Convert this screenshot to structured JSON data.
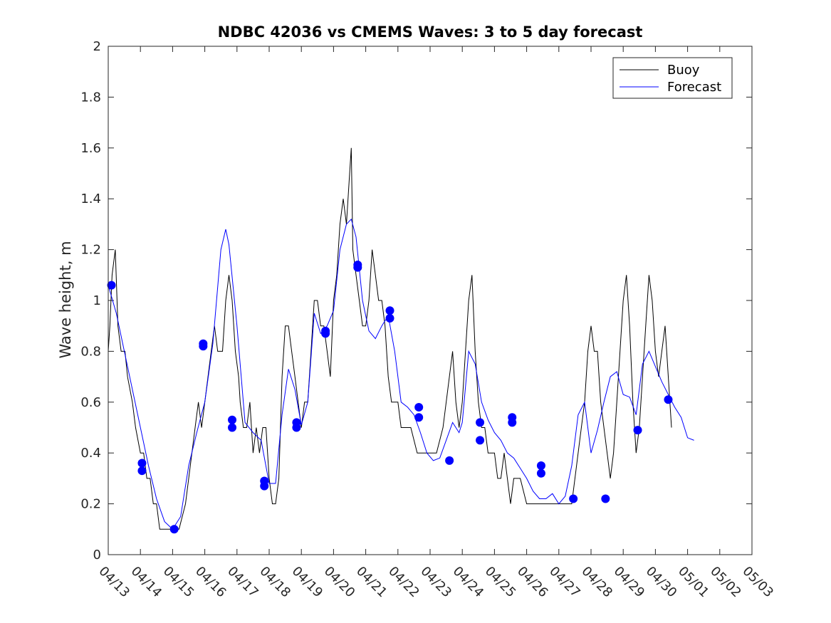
{
  "chart_data": {
    "type": "line",
    "title": "NDBC 42036 vs CMEMS Waves: 3 to 5 day forecast",
    "xlabel": "",
    "ylabel": "Wave height, m",
    "xlim": [
      "04/13",
      "05/03"
    ],
    "ylim": [
      0,
      2
    ],
    "x_tick_labels": [
      "04/13",
      "04/14",
      "04/15",
      "04/16",
      "04/17",
      "04/18",
      "04/19",
      "04/20",
      "04/21",
      "04/22",
      "04/23",
      "04/24",
      "04/25",
      "04/26",
      "04/27",
      "04/28",
      "04/29",
      "04/30",
      "05/01",
      "05/02",
      "05/03"
    ],
    "y_ticks": [
      0,
      0.2,
      0.4,
      0.6,
      0.8,
      1,
      1.2,
      1.4,
      1.6,
      1.8,
      2
    ],
    "y_tick_labels": [
      "0",
      "0.2",
      "0.4",
      "0.6",
      "0.8",
      "1",
      "1.2",
      "1.4",
      "1.6",
      "1.8",
      "2"
    ],
    "grid": false,
    "legend": {
      "placement": "top-right",
      "entries": [
        "Buoy",
        "Forecast"
      ]
    },
    "colors": {
      "buoy": "#000000",
      "forecast": "#0000ff"
    },
    "series": [
      {
        "name": "Buoy",
        "color": "#000000",
        "points": [
          [
            0.0,
            0.8
          ],
          [
            0.05,
            0.9
          ],
          [
            0.12,
            1.1
          ],
          [
            0.22,
            1.2
          ],
          [
            0.3,
            0.9
          ],
          [
            0.4,
            0.8
          ],
          [
            0.52,
            0.8
          ],
          [
            0.6,
            0.7
          ],
          [
            0.75,
            0.6
          ],
          [
            0.85,
            0.5
          ],
          [
            1.0,
            0.4
          ],
          [
            1.1,
            0.4
          ],
          [
            1.2,
            0.3
          ],
          [
            1.3,
            0.3
          ],
          [
            1.4,
            0.2
          ],
          [
            1.5,
            0.2
          ],
          [
            1.6,
            0.1
          ],
          [
            1.8,
            0.1
          ],
          [
            2.0,
            0.1
          ],
          [
            2.2,
            0.1
          ],
          [
            2.4,
            0.2
          ],
          [
            2.5,
            0.3
          ],
          [
            2.6,
            0.4
          ],
          [
            2.7,
            0.5
          ],
          [
            2.8,
            0.6
          ],
          [
            2.9,
            0.5
          ],
          [
            3.0,
            0.6
          ],
          [
            3.1,
            0.7
          ],
          [
            3.2,
            0.8
          ],
          [
            3.3,
            0.9
          ],
          [
            3.4,
            0.8
          ],
          [
            3.55,
            0.8
          ],
          [
            3.65,
            1.0
          ],
          [
            3.75,
            1.1
          ],
          [
            3.85,
            1.0
          ],
          [
            3.95,
            0.8
          ],
          [
            4.05,
            0.7
          ],
          [
            4.1,
            0.6
          ],
          [
            4.2,
            0.5
          ],
          [
            4.3,
            0.5
          ],
          [
            4.4,
            0.6
          ],
          [
            4.5,
            0.4
          ],
          [
            4.6,
            0.5
          ],
          [
            4.7,
            0.4
          ],
          [
            4.8,
            0.5
          ],
          [
            4.9,
            0.5
          ],
          [
            5.0,
            0.3
          ],
          [
            5.1,
            0.2
          ],
          [
            5.2,
            0.2
          ],
          [
            5.3,
            0.3
          ],
          [
            5.4,
            0.7
          ],
          [
            5.5,
            0.9
          ],
          [
            5.6,
            0.9
          ],
          [
            5.7,
            0.8
          ],
          [
            5.8,
            0.7
          ],
          [
            5.9,
            0.6
          ],
          [
            6.0,
            0.5
          ],
          [
            6.1,
            0.6
          ],
          [
            6.2,
            0.6
          ],
          [
            6.3,
            0.8
          ],
          [
            6.4,
            1.0
          ],
          [
            6.5,
            1.0
          ],
          [
            6.6,
            0.9
          ],
          [
            6.7,
            0.9
          ],
          [
            6.8,
            0.8
          ],
          [
            6.9,
            0.7
          ],
          [
            7.0,
            1.0
          ],
          [
            7.1,
            1.1
          ],
          [
            7.2,
            1.3
          ],
          [
            7.3,
            1.4
          ],
          [
            7.4,
            1.3
          ],
          [
            7.5,
            1.5
          ],
          [
            7.55,
            1.6
          ],
          [
            7.6,
            1.2
          ],
          [
            7.7,
            1.1
          ],
          [
            7.8,
            1.0
          ],
          [
            7.9,
            0.9
          ],
          [
            8.0,
            0.9
          ],
          [
            8.1,
            1.0
          ],
          [
            8.2,
            1.2
          ],
          [
            8.3,
            1.1
          ],
          [
            8.4,
            1.0
          ],
          [
            8.5,
            1.0
          ],
          [
            8.6,
            0.9
          ],
          [
            8.7,
            0.7
          ],
          [
            8.8,
            0.6
          ],
          [
            9.0,
            0.6
          ],
          [
            9.1,
            0.5
          ],
          [
            9.2,
            0.5
          ],
          [
            9.4,
            0.5
          ],
          [
            9.6,
            0.4
          ],
          [
            9.8,
            0.4
          ],
          [
            10.0,
            0.4
          ],
          [
            10.2,
            0.4
          ],
          [
            10.4,
            0.5
          ],
          [
            10.5,
            0.6
          ],
          [
            10.6,
            0.7
          ],
          [
            10.7,
            0.8
          ],
          [
            10.8,
            0.6
          ],
          [
            10.9,
            0.5
          ],
          [
            11.0,
            0.6
          ],
          [
            11.1,
            0.8
          ],
          [
            11.2,
            1.0
          ],
          [
            11.3,
            1.1
          ],
          [
            11.4,
            0.8
          ],
          [
            11.5,
            0.6
          ],
          [
            11.6,
            0.5
          ],
          [
            11.7,
            0.5
          ],
          [
            11.8,
            0.4
          ],
          [
            12.0,
            0.4
          ],
          [
            12.1,
            0.3
          ],
          [
            12.2,
            0.3
          ],
          [
            12.3,
            0.4
          ],
          [
            12.4,
            0.3
          ],
          [
            12.5,
            0.2
          ],
          [
            12.6,
            0.3
          ],
          [
            12.8,
            0.3
          ],
          [
            13.0,
            0.2
          ],
          [
            13.5,
            0.2
          ],
          [
            14.0,
            0.2
          ],
          [
            14.2,
            0.2
          ],
          [
            14.4,
            0.2
          ],
          [
            14.5,
            0.3
          ],
          [
            14.6,
            0.4
          ],
          [
            14.7,
            0.5
          ],
          [
            14.8,
            0.6
          ],
          [
            14.9,
            0.8
          ],
          [
            15.0,
            0.9
          ],
          [
            15.1,
            0.8
          ],
          [
            15.2,
            0.8
          ],
          [
            15.3,
            0.6
          ],
          [
            15.4,
            0.5
          ],
          [
            15.5,
            0.4
          ],
          [
            15.6,
            0.3
          ],
          [
            15.7,
            0.4
          ],
          [
            15.8,
            0.6
          ],
          [
            15.9,
            0.8
          ],
          [
            16.0,
            1.0
          ],
          [
            16.1,
            1.1
          ],
          [
            16.2,
            0.9
          ],
          [
            16.3,
            0.6
          ],
          [
            16.4,
            0.4
          ],
          [
            16.5,
            0.5
          ],
          [
            16.6,
            0.7
          ],
          [
            16.7,
            0.9
          ],
          [
            16.8,
            1.1
          ],
          [
            16.9,
            1.0
          ],
          [
            17.0,
            0.8
          ],
          [
            17.1,
            0.7
          ],
          [
            17.2,
            0.8
          ],
          [
            17.3,
            0.9
          ],
          [
            17.4,
            0.7
          ],
          [
            17.5,
            0.5
          ]
        ]
      },
      {
        "name": "Forecast",
        "color": "#0000ff",
        "points": [
          [
            0.0,
            1.06
          ],
          [
            0.25,
            0.95
          ],
          [
            0.5,
            0.8
          ],
          [
            0.75,
            0.65
          ],
          [
            1.0,
            0.5
          ],
          [
            1.25,
            0.35
          ],
          [
            1.5,
            0.22
          ],
          [
            1.75,
            0.13
          ],
          [
            2.0,
            0.1
          ],
          [
            2.25,
            0.15
          ],
          [
            2.5,
            0.35
          ],
          [
            2.75,
            0.48
          ],
          [
            3.0,
            0.6
          ],
          [
            3.25,
            0.83
          ],
          [
            3.5,
            1.2
          ],
          [
            3.65,
            1.28
          ],
          [
            3.75,
            1.22
          ],
          [
            4.0,
            0.9
          ],
          [
            4.25,
            0.52
          ],
          [
            4.5,
            0.48
          ],
          [
            4.75,
            0.45
          ],
          [
            5.0,
            0.28
          ],
          [
            5.2,
            0.28
          ],
          [
            5.4,
            0.55
          ],
          [
            5.6,
            0.73
          ],
          [
            5.8,
            0.65
          ],
          [
            6.0,
            0.51
          ],
          [
            6.2,
            0.6
          ],
          [
            6.4,
            0.95
          ],
          [
            6.6,
            0.87
          ],
          [
            6.8,
            0.9
          ],
          [
            7.0,
            0.96
          ],
          [
            7.2,
            1.2
          ],
          [
            7.4,
            1.3
          ],
          [
            7.55,
            1.32
          ],
          [
            7.7,
            1.25
          ],
          [
            7.9,
            1.0
          ],
          [
            8.1,
            0.88
          ],
          [
            8.3,
            0.85
          ],
          [
            8.5,
            0.9
          ],
          [
            8.7,
            0.94
          ],
          [
            8.9,
            0.8
          ],
          [
            9.1,
            0.6
          ],
          [
            9.3,
            0.58
          ],
          [
            9.5,
            0.55
          ],
          [
            9.7,
            0.48
          ],
          [
            9.9,
            0.4
          ],
          [
            10.1,
            0.37
          ],
          [
            10.3,
            0.38
          ],
          [
            10.5,
            0.45
          ],
          [
            10.7,
            0.52
          ],
          [
            10.9,
            0.48
          ],
          [
            11.0,
            0.52
          ],
          [
            11.2,
            0.8
          ],
          [
            11.4,
            0.75
          ],
          [
            11.6,
            0.6
          ],
          [
            11.8,
            0.53
          ],
          [
            12.0,
            0.48
          ],
          [
            12.2,
            0.45
          ],
          [
            12.4,
            0.4
          ],
          [
            12.6,
            0.38
          ],
          [
            12.8,
            0.34
          ],
          [
            13.0,
            0.3
          ],
          [
            13.2,
            0.25
          ],
          [
            13.4,
            0.22
          ],
          [
            13.6,
            0.22
          ],
          [
            13.8,
            0.24
          ],
          [
            14.0,
            0.2
          ],
          [
            14.2,
            0.23
          ],
          [
            14.4,
            0.35
          ],
          [
            14.6,
            0.55
          ],
          [
            14.8,
            0.6
          ],
          [
            15.0,
            0.4
          ],
          [
            15.2,
            0.49
          ],
          [
            15.4,
            0.6
          ],
          [
            15.6,
            0.7
          ],
          [
            15.8,
            0.72
          ],
          [
            16.0,
            0.63
          ],
          [
            16.2,
            0.62
          ],
          [
            16.4,
            0.55
          ],
          [
            16.6,
            0.75
          ],
          [
            16.8,
            0.8
          ],
          [
            17.0,
            0.74
          ],
          [
            17.2,
            0.68
          ],
          [
            17.4,
            0.63
          ],
          [
            17.6,
            0.58
          ],
          [
            17.8,
            0.54
          ],
          [
            18.0,
            0.46
          ],
          [
            18.2,
            0.45
          ]
        ]
      }
    ],
    "forecast_markers": [
      [
        0.1,
        1.06
      ],
      [
        1.05,
        0.36
      ],
      [
        1.05,
        0.33
      ],
      [
        2.05,
        0.1
      ],
      [
        2.95,
        0.83
      ],
      [
        2.95,
        0.82
      ],
      [
        3.85,
        0.53
      ],
      [
        3.85,
        0.5
      ],
      [
        4.85,
        0.29
      ],
      [
        4.85,
        0.27
      ],
      [
        5.85,
        0.52
      ],
      [
        5.85,
        0.5
      ],
      [
        6.75,
        0.88
      ],
      [
        6.75,
        0.87
      ],
      [
        7.75,
        1.14
      ],
      [
        7.75,
        1.13
      ],
      [
        8.75,
        0.96
      ],
      [
        8.75,
        0.93
      ],
      [
        9.65,
        0.58
      ],
      [
        9.65,
        0.54
      ],
      [
        10.6,
        0.37
      ],
      [
        11.55,
        0.52
      ],
      [
        11.55,
        0.45
      ],
      [
        12.55,
        0.54
      ],
      [
        12.55,
        0.52
      ],
      [
        13.45,
        0.35
      ],
      [
        13.45,
        0.32
      ],
      [
        14.45,
        0.22
      ],
      [
        15.45,
        0.22
      ],
      [
        16.45,
        0.49
      ],
      [
        17.4,
        0.61
      ]
    ]
  }
}
